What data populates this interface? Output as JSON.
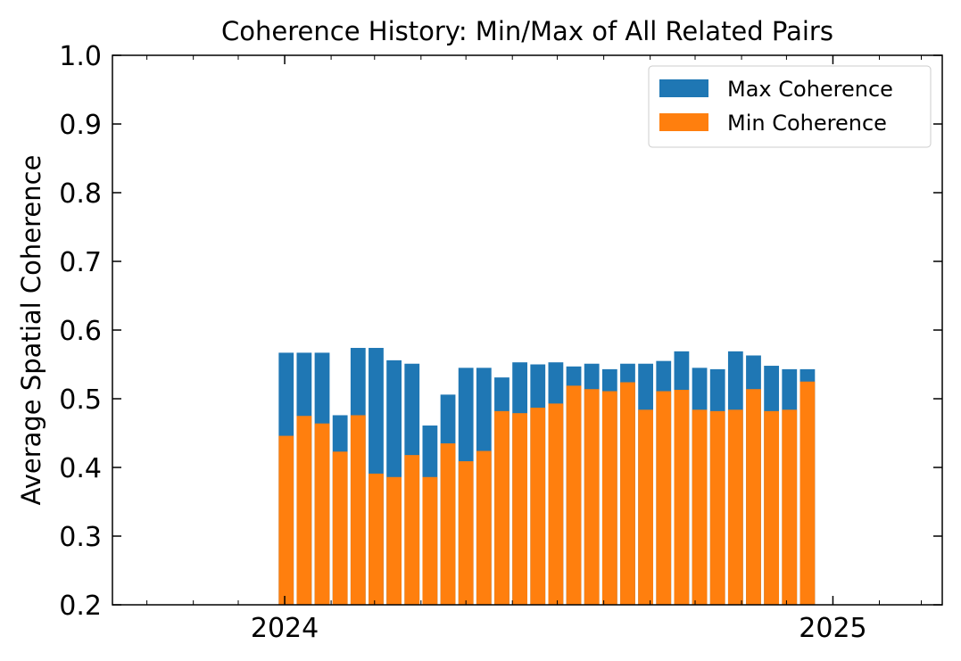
{
  "chart_data": {
    "type": "bar",
    "stacking": "overlay",
    "title": "Coherence History: Min/Max of All Related Pairs",
    "xlabel": "",
    "ylabel": "Average Spatial Coherence",
    "ylim": [
      0.2,
      1.0
    ],
    "yticks": [
      "0.2",
      "0.3",
      "0.4",
      "0.5",
      "0.6",
      "0.7",
      "0.8",
      "0.9",
      "1.0"
    ],
    "xticks": [
      {
        "label": "2024",
        "date": "2024-01-01"
      },
      {
        "label": "2025",
        "date": "2025-01-01"
      }
    ],
    "xlim": [
      "2023-09-08",
      "2025-03-15"
    ],
    "minor_xticks": [
      "2023-10-01",
      "2023-11-01",
      "2023-12-01",
      "2024-02-01",
      "2024-03-01",
      "2024-04-01",
      "2024-05-01",
      "2024-06-01",
      "2024-07-01",
      "2024-08-01",
      "2024-09-01",
      "2024-10-01",
      "2024-11-01",
      "2024-12-01",
      "2025-02-01",
      "2025-03-01"
    ],
    "grid": false,
    "legend_position": "upper right",
    "x": [
      "2024-01-02",
      "2024-01-14",
      "2024-01-26",
      "2024-02-07",
      "2024-02-19",
      "2024-03-02",
      "2024-03-14",
      "2024-03-26",
      "2024-04-07",
      "2024-04-19",
      "2024-05-01",
      "2024-05-13",
      "2024-05-25",
      "2024-06-06",
      "2024-06-18",
      "2024-06-30",
      "2024-07-12",
      "2024-07-24",
      "2024-08-05",
      "2024-08-17",
      "2024-08-29",
      "2024-09-10",
      "2024-09-22",
      "2024-10-04",
      "2024-10-16",
      "2024-10-28",
      "2024-11-09",
      "2024-11-21",
      "2024-12-03",
      "2024-12-15"
    ],
    "series": [
      {
        "name": "Max Coherence",
        "color": "#1f77b4",
        "values": [
          0.567,
          0.567,
          0.567,
          0.476,
          0.574,
          0.574,
          0.556,
          0.551,
          0.461,
          0.506,
          0.545,
          0.545,
          0.531,
          0.553,
          0.55,
          0.553,
          0.547,
          0.551,
          0.543,
          0.551,
          0.551,
          0.555,
          0.569,
          0.545,
          0.543,
          0.569,
          0.563,
          0.548,
          0.543,
          0.543
        ]
      },
      {
        "name": "Min Coherence",
        "color": "#ff7f0e",
        "values": [
          0.446,
          0.475,
          0.464,
          0.423,
          0.476,
          0.391,
          0.386,
          0.418,
          0.386,
          0.435,
          0.409,
          0.424,
          0.482,
          0.479,
          0.487,
          0.493,
          0.519,
          0.514,
          0.511,
          0.524,
          0.484,
          0.511,
          0.513,
          0.484,
          0.482,
          0.484,
          0.514,
          0.482,
          0.484,
          0.525
        ]
      }
    ]
  }
}
